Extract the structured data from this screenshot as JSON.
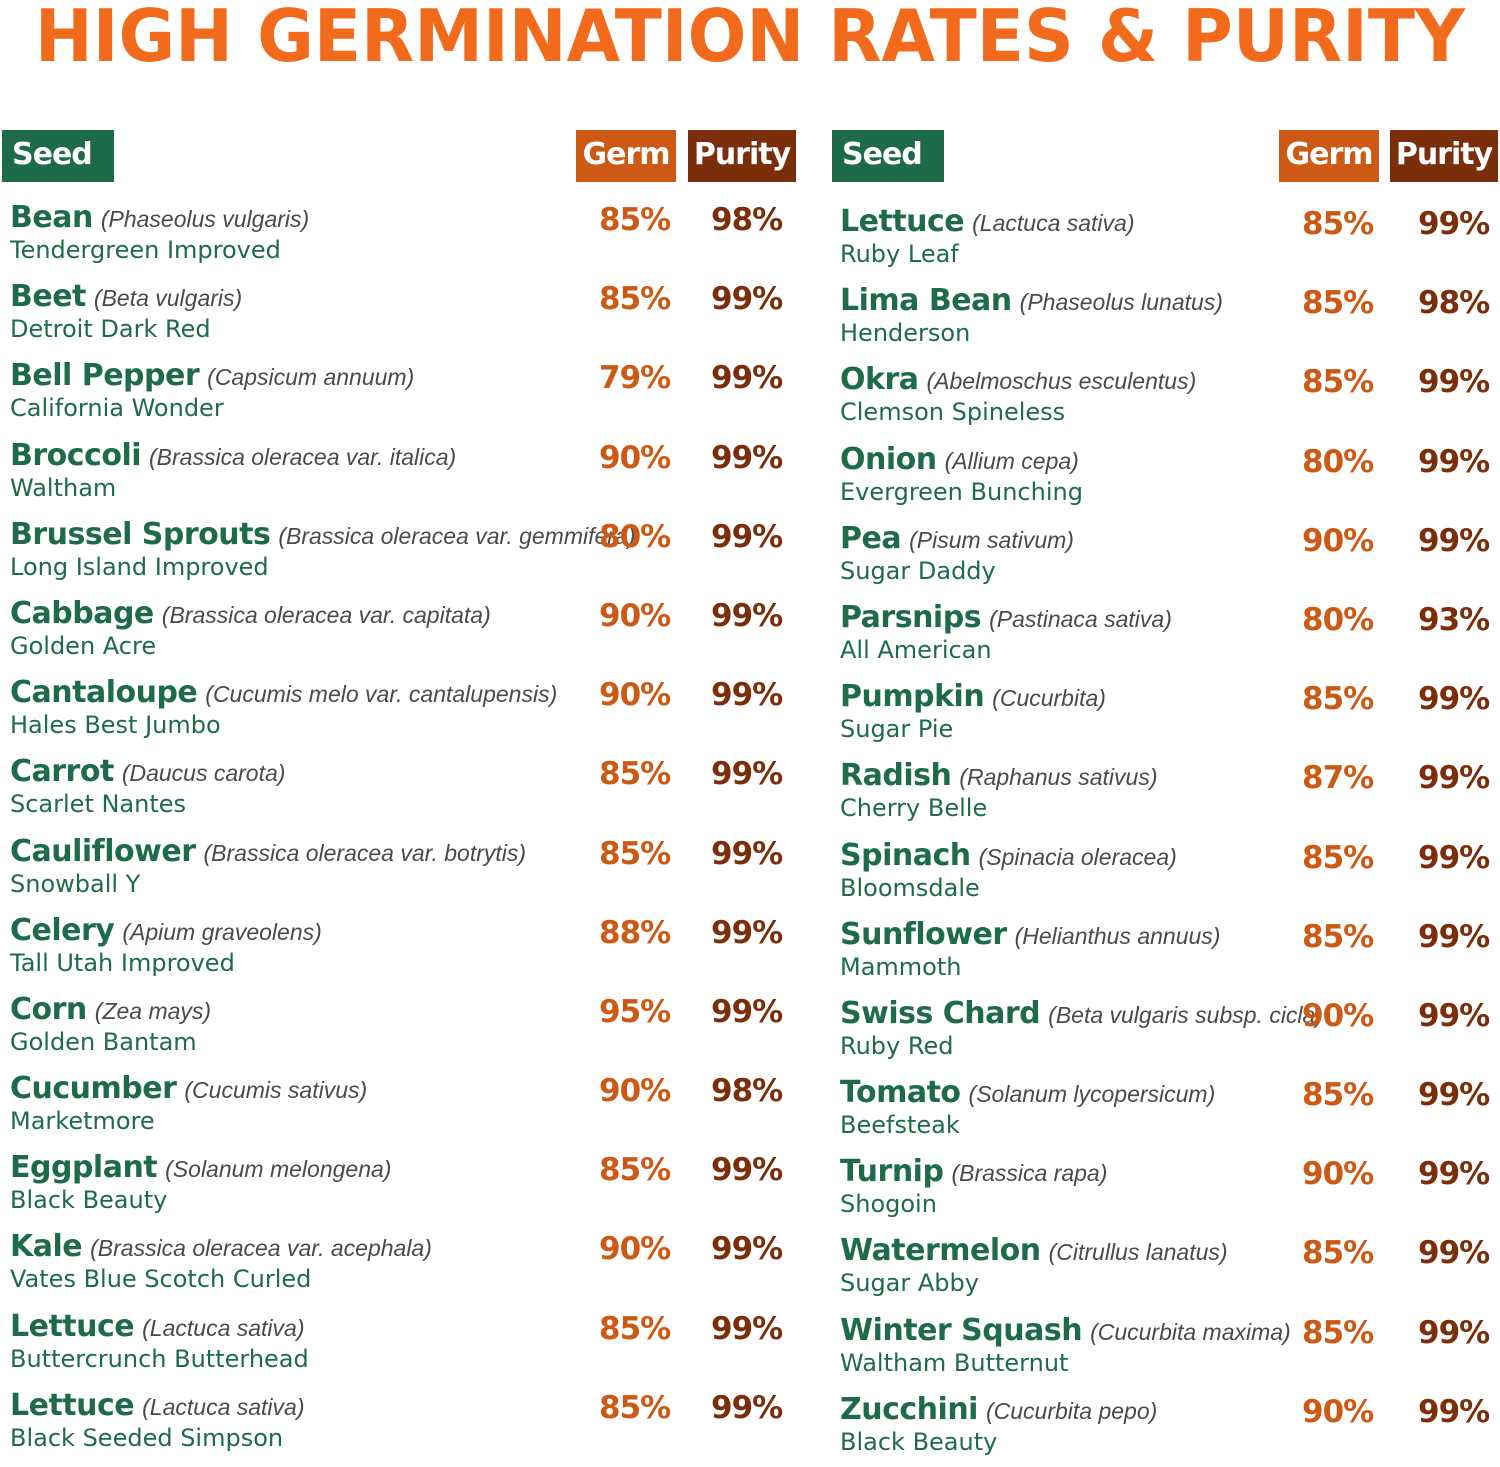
{
  "title": "HIGH GERMINATION RATES & PURITY",
  "headers": {
    "seed": "Seed",
    "germ": "Germ",
    "purity": "Purity"
  },
  "colors": {
    "title": "#f26a1b",
    "green": "#1e6b4a",
    "germ": "#cc5a14",
    "purity": "#7a2e0a"
  },
  "left": [
    {
      "name": "Bean",
      "sci": "(Phaseolus vulgaris)",
      "variety": "Tendergreen Improved",
      "germ": "85%",
      "purity": "98%"
    },
    {
      "name": "Beet",
      "sci": "(Beta vulgaris)",
      "variety": "Detroit Dark Red",
      "germ": "85%",
      "purity": "99%"
    },
    {
      "name": "Bell Pepper",
      "sci": "(Capsicum annuum)",
      "variety": "California Wonder",
      "germ": "79%",
      "purity": "99%"
    },
    {
      "name": "Broccoli",
      "sci": "(Brassica oleracea var. italica)",
      "variety": "Waltham",
      "germ": "90%",
      "purity": "99%"
    },
    {
      "name": "Brussel Sprouts",
      "sci": "(Brassica oleracea var. gemmifera)",
      "variety": "Long Island Improved",
      "germ": "80%",
      "purity": "99%"
    },
    {
      "name": "Cabbage",
      "sci": "(Brassica oleracea var. capitata)",
      "variety": "Golden Acre",
      "germ": "90%",
      "purity": "99%"
    },
    {
      "name": "Cantaloupe",
      "sci": "(Cucumis melo var. cantalupensis)",
      "variety": "Hales Best Jumbo",
      "germ": "90%",
      "purity": "99%"
    },
    {
      "name": "Carrot",
      "sci": "(Daucus carota)",
      "variety": "Scarlet Nantes",
      "germ": "85%",
      "purity": "99%"
    },
    {
      "name": "Cauliflower",
      "sci": "(Brassica oleracea var. botrytis)",
      "variety": "Snowball Y",
      "germ": "85%",
      "purity": "99%"
    },
    {
      "name": "Celery",
      "sci": "(Apium graveolens)",
      "variety": "Tall Utah Improved",
      "germ": "88%",
      "purity": "99%"
    },
    {
      "name": "Corn",
      "sci": "(Zea mays)",
      "variety": "Golden Bantam",
      "germ": "95%",
      "purity": "99%"
    },
    {
      "name": "Cucumber",
      "sci": "(Cucumis sativus)",
      "variety": "Marketmore",
      "germ": "90%",
      "purity": "98%"
    },
    {
      "name": "Eggplant",
      "sci": "(Solanum melongena)",
      "variety": "Black Beauty",
      "germ": "85%",
      "purity": "99%"
    },
    {
      "name": "Kale",
      "sci": "(Brassica oleracea var. acephala)",
      "variety": "Vates Blue Scotch Curled",
      "germ": "90%",
      "purity": "99%"
    },
    {
      "name": "Lettuce",
      "sci": "(Lactuca sativa)",
      "variety": "Buttercrunch Butterhead",
      "germ": "85%",
      "purity": "99%"
    },
    {
      "name": "Lettuce",
      "sci": "(Lactuca sativa)",
      "variety": "Black Seeded Simpson",
      "germ": "85%",
      "purity": "99%"
    }
  ],
  "right": [
    {
      "name": "Lettuce",
      "sci": "(Lactuca sativa)",
      "variety": "Ruby Leaf",
      "germ": "85%",
      "purity": "99%"
    },
    {
      "name": "Lima Bean",
      "sci": "(Phaseolus lunatus)",
      "variety": "Henderson",
      "germ": "85%",
      "purity": "98%"
    },
    {
      "name": "Okra",
      "sci": "(Abelmoschus esculentus)",
      "variety": "Clemson Spineless",
      "germ": "85%",
      "purity": "99%"
    },
    {
      "name": "Onion",
      "sci": "(Allium cepa)",
      "variety": "Evergreen Bunching",
      "germ": "80%",
      "purity": "99%"
    },
    {
      "name": "Pea",
      "sci": "(Pisum sativum)",
      "variety": "Sugar Daddy",
      "germ": "90%",
      "purity": "99%"
    },
    {
      "name": "Parsnips",
      "sci": "(Pastinaca sativa)",
      "variety": "All American",
      "germ": "80%",
      "purity": "93%"
    },
    {
      "name": "Pumpkin",
      "sci": "(Cucurbita)",
      "variety": "Sugar Pie",
      "germ": "85%",
      "purity": "99%"
    },
    {
      "name": "Radish",
      "sci": "(Raphanus sativus)",
      "variety": "Cherry Belle",
      "germ": "87%",
      "purity": "99%"
    },
    {
      "name": "Spinach",
      "sci": "(Spinacia oleracea)",
      "variety": "Bloomsdale",
      "germ": "85%",
      "purity": "99%"
    },
    {
      "name": "Sunflower",
      "sci": "(Helianthus annuus)",
      "variety": "Mammoth",
      "germ": "85%",
      "purity": "99%"
    },
    {
      "name": "Swiss Chard",
      "sci": "(Beta vulgaris subsp. cicla)",
      "variety": "Ruby Red",
      "germ": "90%",
      "purity": "99%"
    },
    {
      "name": "Tomato",
      "sci": "(Solanum lycopersicum)",
      "variety": "Beefsteak",
      "germ": "85%",
      "purity": "99%"
    },
    {
      "name": "Turnip",
      "sci": "(Brassica rapa)",
      "variety": "Shogoin",
      "germ": "90%",
      "purity": "99%"
    },
    {
      "name": "Watermelon",
      "sci": "(Citrullus lanatus)",
      "variety": "Sugar Abby",
      "germ": "85%",
      "purity": "99%"
    },
    {
      "name": "Winter Squash",
      "sci": "(Cucurbita maxima)",
      "variety": "Waltham Butternut",
      "germ": "85%",
      "purity": "99%"
    },
    {
      "name": "Zucchini",
      "sci": "(Cucurbita pepo)",
      "variety": "Black Beauty",
      "germ": "90%",
      "purity": "99%"
    }
  ]
}
